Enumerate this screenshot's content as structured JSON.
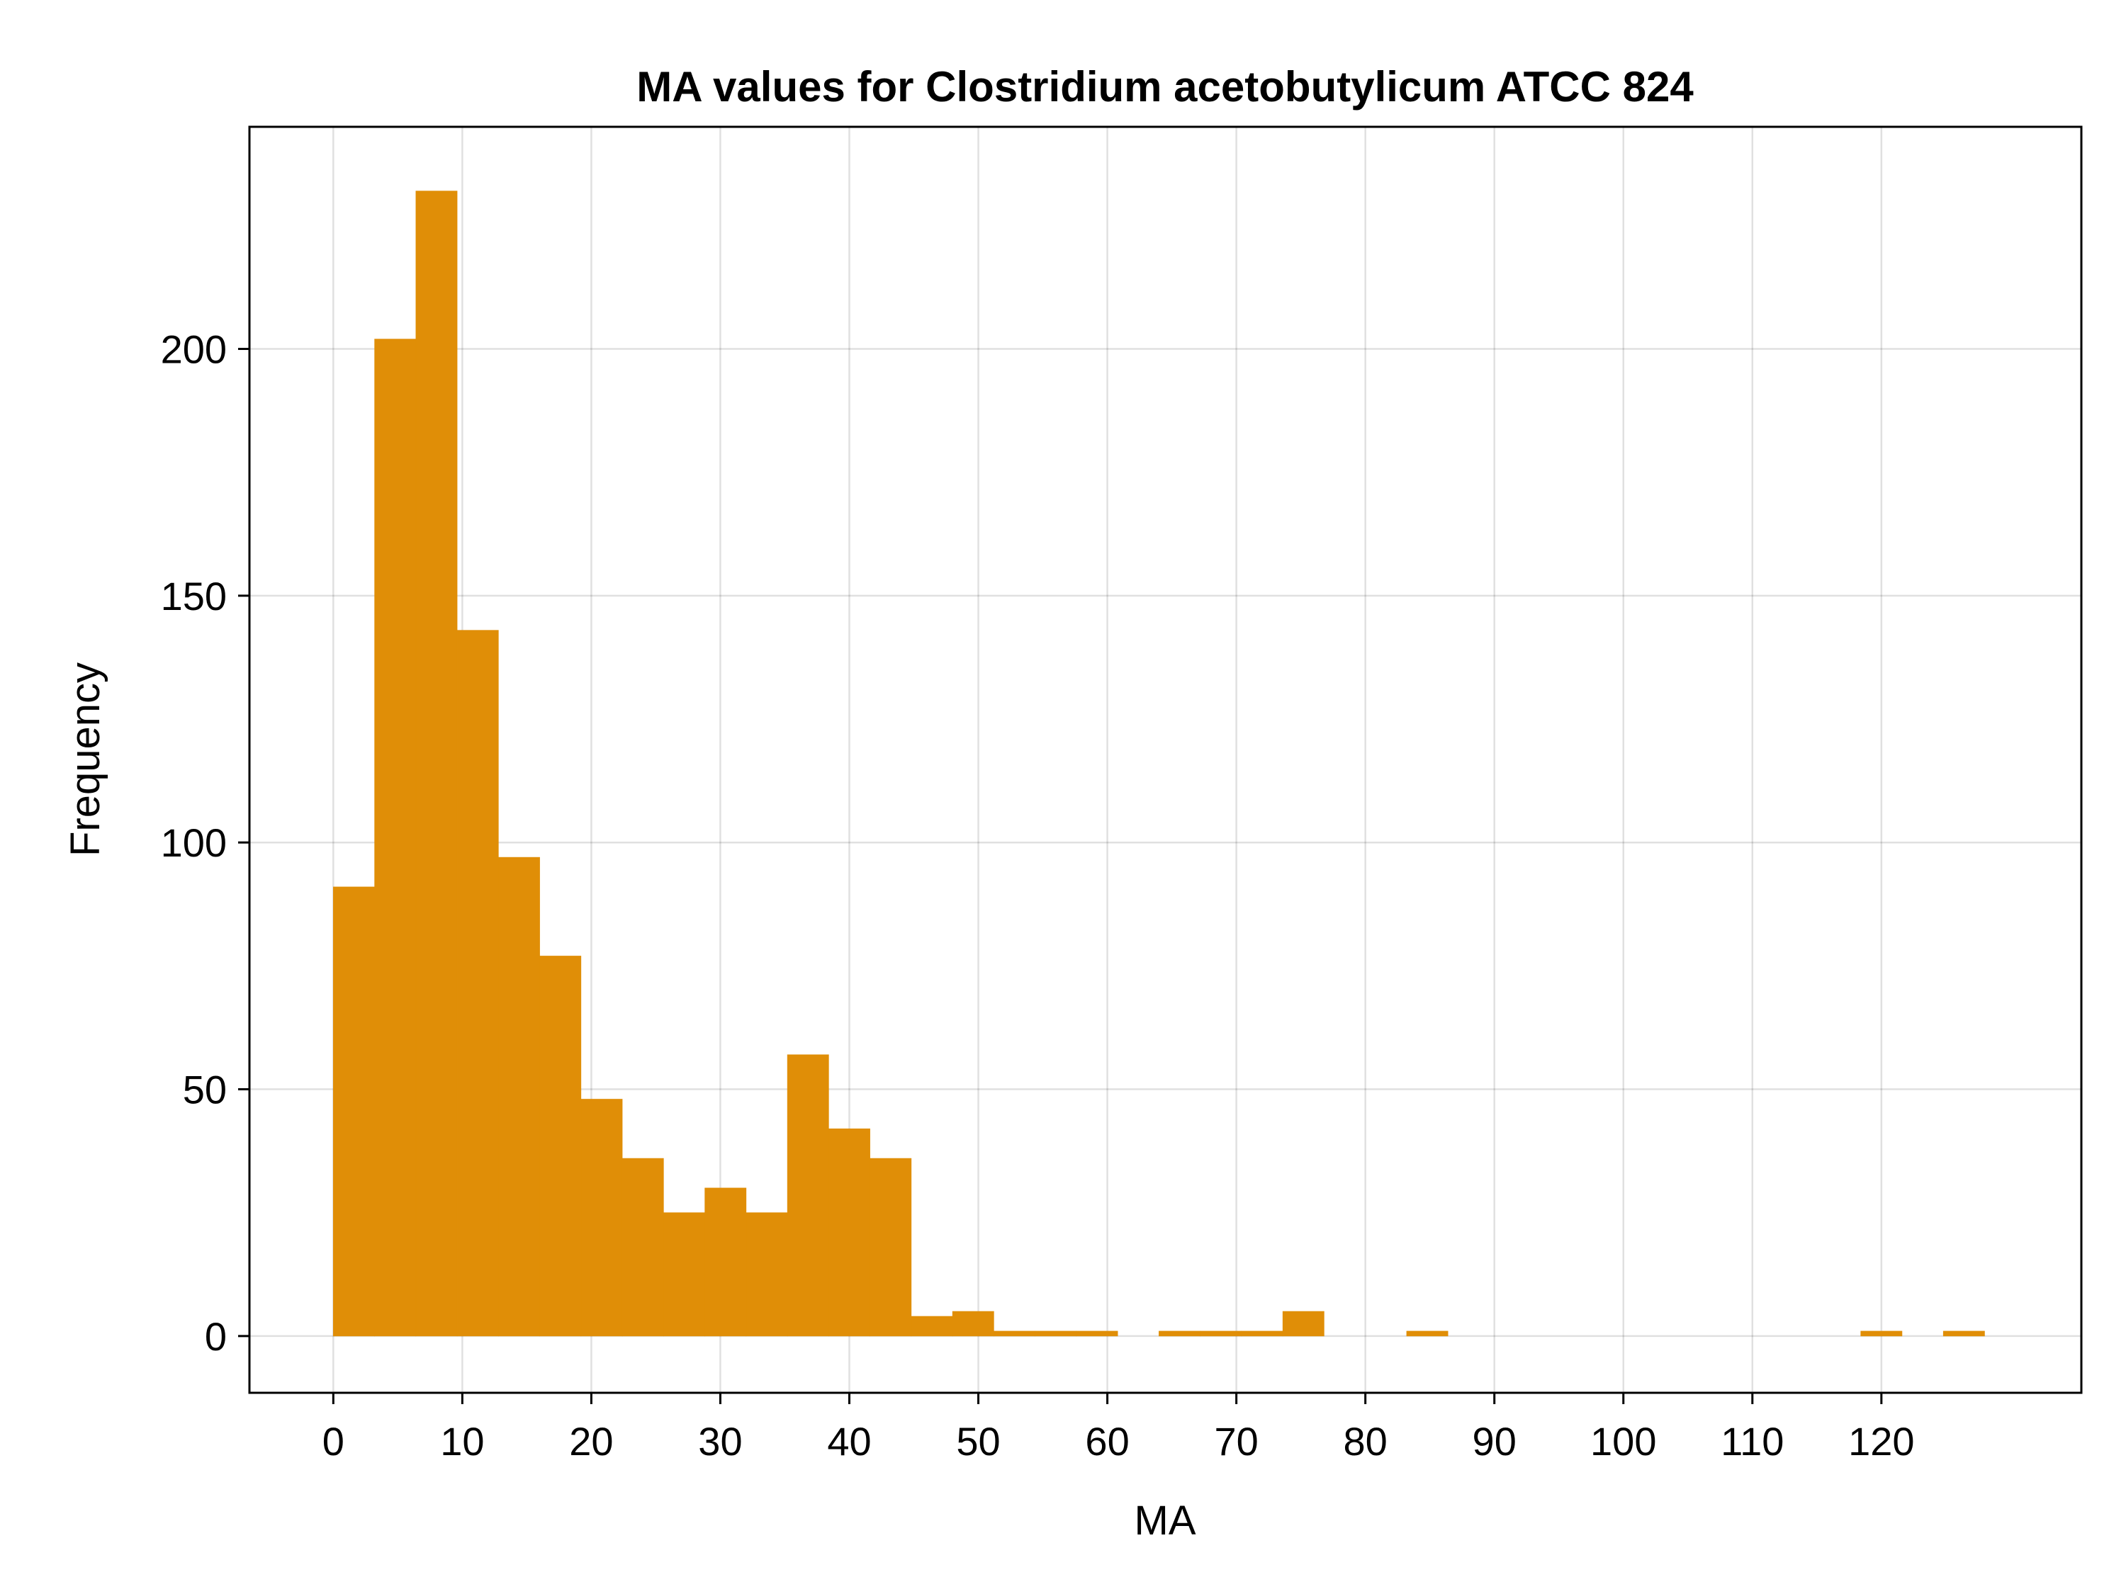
{
  "chart_data": {
    "type": "bar",
    "title": "MA values for Clostridium acetobutylicum ATCC 824",
    "xlabel": "MA",
    "ylabel": "Frequency",
    "color": "#E08E07",
    "grid": true,
    "xlim": [
      -6.5,
      135.5
    ],
    "ylim": [
      -11.5,
      245
    ],
    "xticks": [
      0,
      10,
      20,
      30,
      40,
      50,
      60,
      70,
      80,
      90,
      100,
      110,
      120
    ],
    "yticks": [
      0,
      50,
      100,
      150,
      200
    ],
    "bin_width": 3.2,
    "bin_edges": [
      0,
      3.2,
      6.4,
      9.6,
      12.8,
      16.0,
      19.2,
      22.4,
      25.6,
      28.8,
      32.0,
      35.2,
      38.4,
      41.6,
      44.8,
      48.0,
      51.2,
      54.4,
      57.6,
      60.8,
      64.0,
      67.2,
      70.4,
      73.6,
      76.8,
      80.0,
      83.2,
      86.4,
      89.6,
      92.8,
      96.0,
      99.2,
      102.4,
      105.6,
      108.8,
      112.0,
      115.2,
      118.4,
      121.6,
      124.8,
      128.0
    ],
    "values": [
      91,
      202,
      232,
      143,
      97,
      77,
      48,
      36,
      25,
      30,
      25,
      57,
      42,
      36,
      4,
      5,
      1,
      1,
      1,
      0,
      1,
      1,
      1,
      5,
      0,
      0,
      1,
      0,
      0,
      0,
      0,
      0,
      0,
      0,
      0,
      0,
      0,
      1,
      0,
      1
    ]
  }
}
